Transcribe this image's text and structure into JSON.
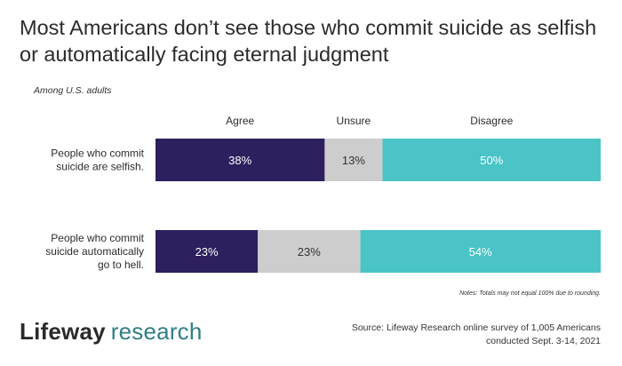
{
  "title": "Most Americans don’t see those who commit suicide as selfish or automatically facing eternal judgment",
  "subtitle": "Among U.S. adults",
  "chart_data": {
    "type": "bar",
    "orientation": "horizontal",
    "stacked": true,
    "title": "Most Americans don’t see those who commit suicide as selfish or automatically facing eternal judgment",
    "categories": [
      "People who commit suicide are selfish.",
      "People who commit suicide automatically go to hell."
    ],
    "category_lines": [
      [
        "People who commit",
        "suicide are selfish."
      ],
      [
        "People who commit",
        "suicide automatically",
        "go to hell."
      ]
    ],
    "series": [
      {
        "name": "Agree",
        "values": [
          38,
          23
        ],
        "labels": [
          "38%",
          "23%"
        ],
        "color": "#2e1f5e",
        "label_color": "#ffffff"
      },
      {
        "name": "Unsure",
        "values": [
          13,
          23
        ],
        "labels": [
          "13%",
          "23%"
        ],
        "color": "#cdcdcd",
        "label_color": "#333333"
      },
      {
        "name": "Disagree",
        "values": [
          50,
          54
        ],
        "labels": [
          "50%",
          "54%"
        ],
        "color": "#4ac4c6",
        "label_color": "#ffffff"
      }
    ],
    "xlim": [
      0,
      100
    ],
    "unit": "%",
    "grid": false,
    "legend": "top"
  },
  "note": "Notes: Totals may not equal 100% due to rounding.",
  "logo": {
    "brand": "Lifeway",
    "sub": "research"
  },
  "source": {
    "line1": "Source: Lifeway Research online survey of 1,005 Americans",
    "line2": "conducted Sept. 3-14, 2021"
  },
  "colors": {
    "agree": "#2e1f5e",
    "unsure": "#cdcdcd",
    "disagree": "#4ac4c6",
    "brand_accent": "#2f7f86"
  }
}
